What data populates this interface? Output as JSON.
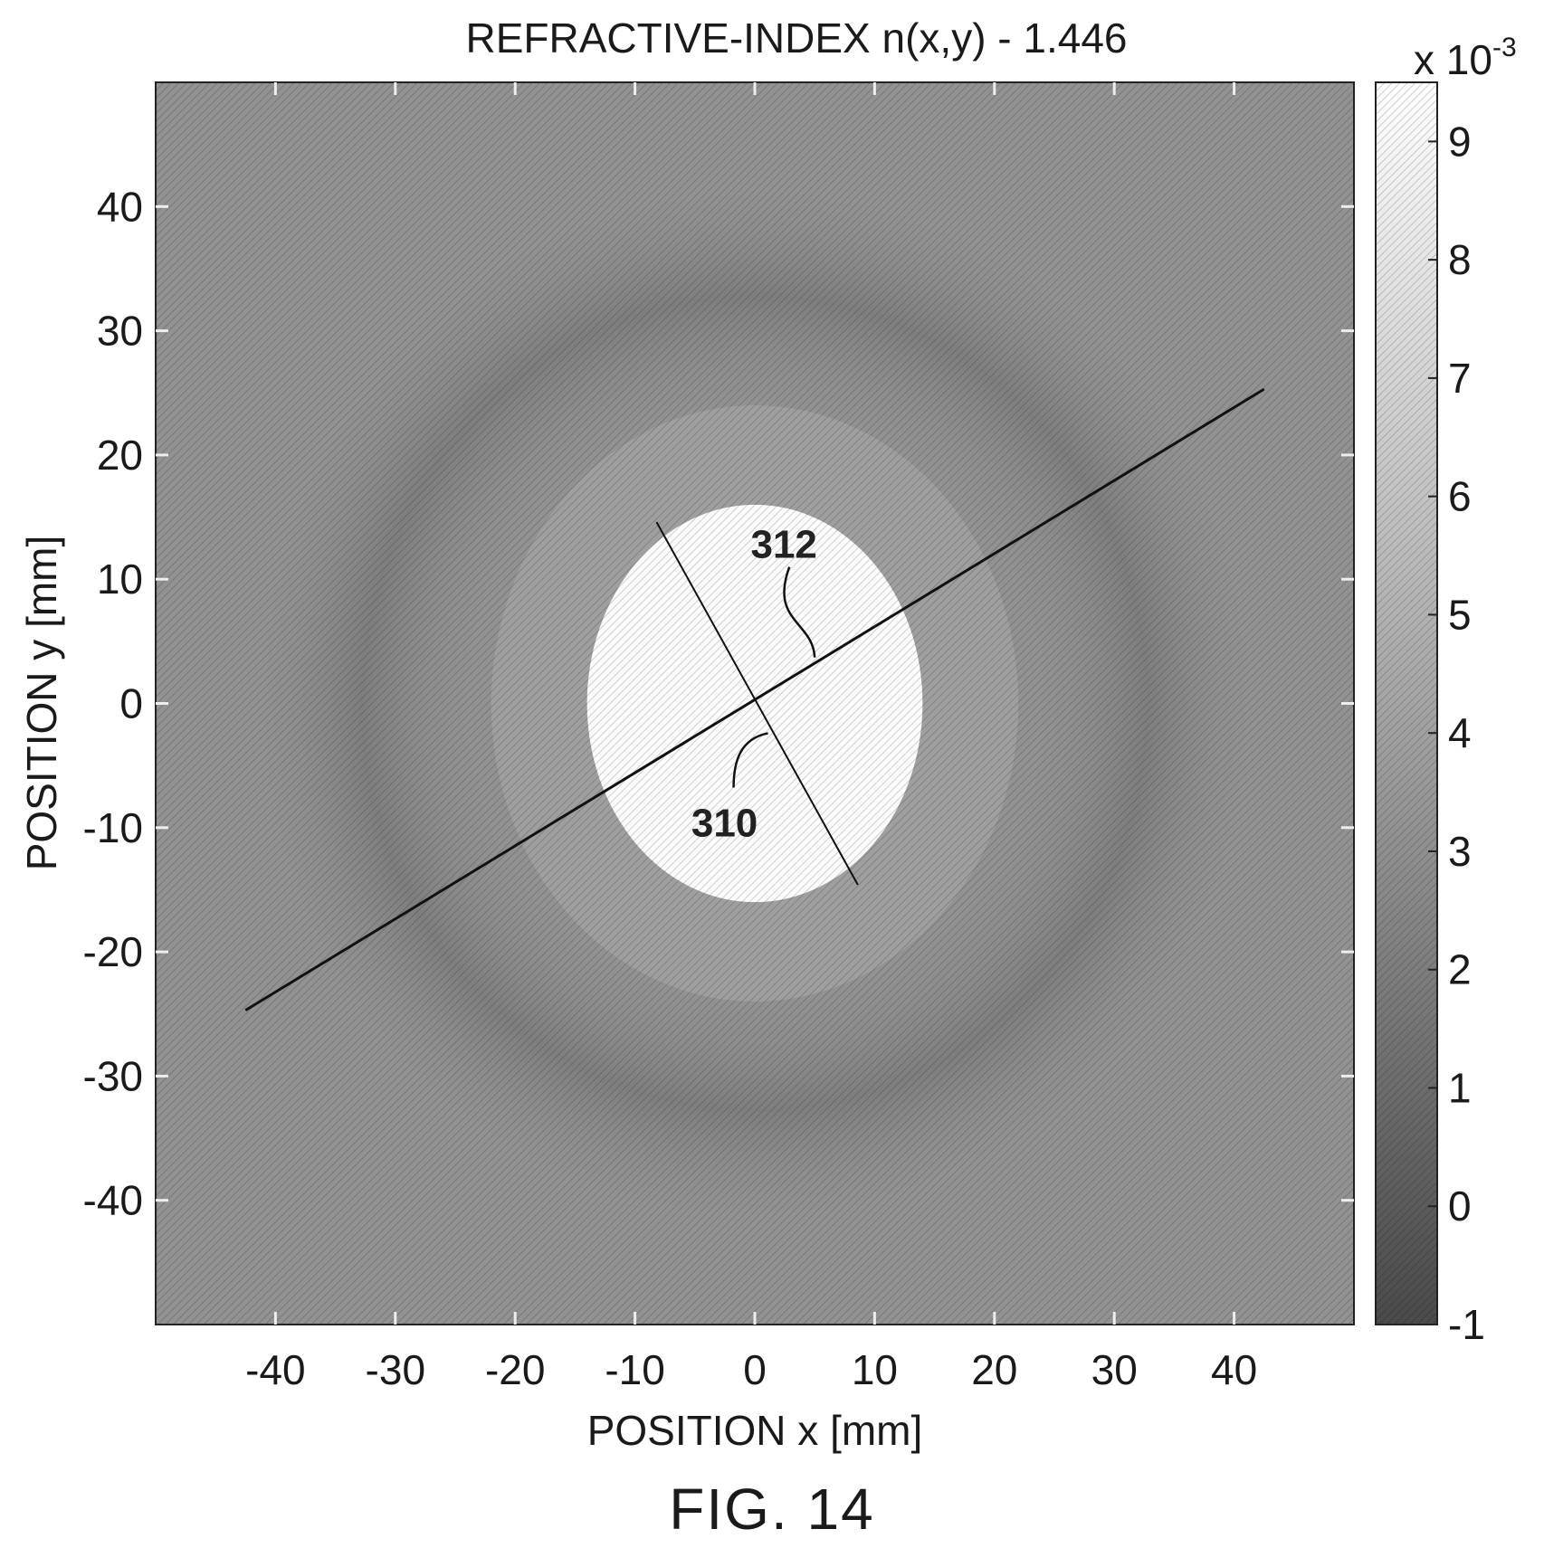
{
  "chart_data": {
    "type": "heatmap",
    "title": "REFRACTIVE-INDEX n(x,y) - 1.446",
    "xlabel": "POSITION x [mm]",
    "ylabel": "POSITION y [mm]",
    "xlim": [
      -50,
      50
    ],
    "ylim": [
      -50,
      50
    ],
    "xticks": [
      -40,
      -30,
      -20,
      -10,
      0,
      10,
      20,
      30,
      40
    ],
    "yticks": [
      40,
      30,
      20,
      10,
      0,
      -10,
      -20,
      -30,
      -40
    ],
    "x_tick_labels": [
      "-40",
      "-30",
      "-20",
      "-10",
      "0",
      "10",
      "20",
      "30",
      "40"
    ],
    "y_tick_labels": [
      "40",
      "30",
      "20",
      "10",
      "0",
      "-10",
      "-20",
      "-30",
      "-40"
    ],
    "colorbar": {
      "range": [
        -1,
        9.5
      ],
      "ticks": [
        9,
        8,
        7,
        6,
        5,
        4,
        3,
        2,
        1,
        0,
        -1
      ],
      "tick_labels": [
        "9",
        "8",
        "7",
        "6",
        "5",
        "4",
        "3",
        "2",
        "1",
        "0",
        "-1"
      ],
      "multiplier_prefix": "x 10",
      "multiplier_exponent": "-3",
      "colormap": "grayscale"
    },
    "grid": false,
    "regions": {
      "central_disk": {
        "center": [
          0,
          0
        ],
        "radius_x": 14,
        "radius_y": 16,
        "value": 9.3
      },
      "inner_band": {
        "center": [
          0,
          0
        ],
        "radius_x": 22,
        "radius_y": 24,
        "value": 4.5
      },
      "outer_ring": {
        "center": [
          0,
          0
        ],
        "radius_x": 42,
        "radius_y": 42,
        "value": 2.5
      },
      "background_value": 3.2
    },
    "lines": [
      {
        "id": "312",
        "from": [
          -42.5,
          -24.7
        ],
        "to": [
          42.5,
          25.3
        ]
      },
      {
        "id": "310",
        "from": [
          -8.2,
          14.6
        ],
        "to": [
          8.6,
          -14.6
        ]
      }
    ],
    "annotations": [
      {
        "text": "312",
        "anchor": [
          5,
          3.7
        ]
      },
      {
        "text": "310",
        "anchor": [
          1.1,
          -2.4
        ]
      }
    ]
  },
  "figure_label": "FIG. 14"
}
